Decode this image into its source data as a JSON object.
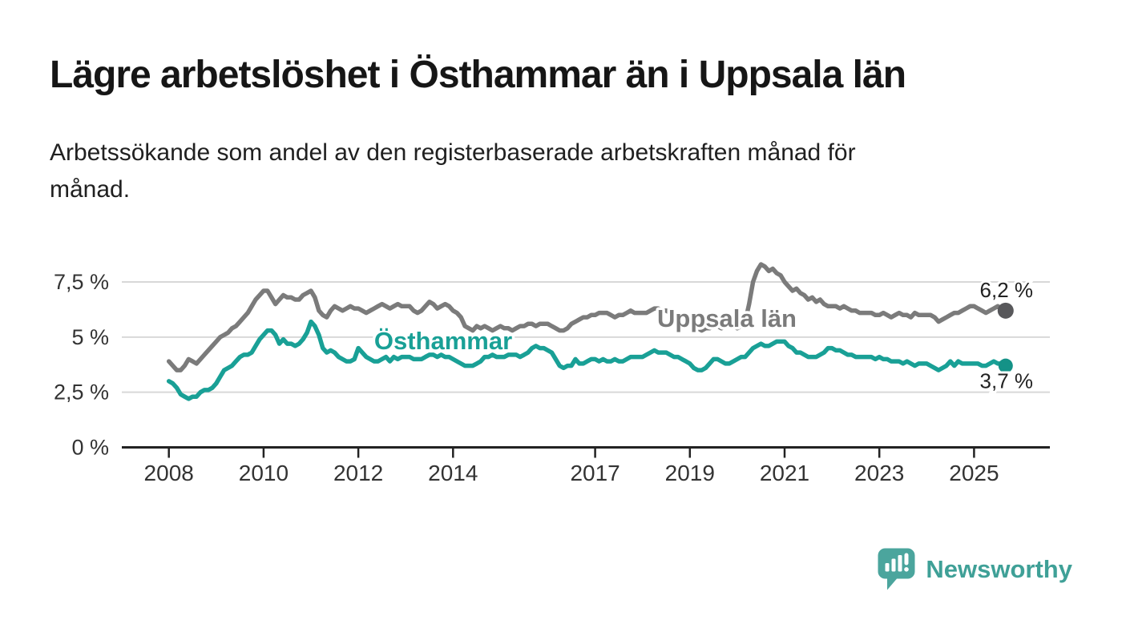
{
  "header": {
    "title": "Lägre arbetslöshet i Östhammar än i Uppsala län",
    "subtitle": "Arbetssökande som andel av den registerbaserade arbetskraften månad för månad.",
    "subtitle_lines": [
      "Arbetssökande som andel av den registerbaserade arbetskraften månad för",
      "månad."
    ]
  },
  "footer": {
    "brand": "Newsworthy",
    "brand_icon": "speech-bubble-bar-chart"
  },
  "colors": {
    "uppsala_line": "#7B7B7B",
    "uppsala_dot": "#58585B",
    "osthammar_line": "#19A096",
    "osthammar_dot": "#149287",
    "grid": "#D8D8D8",
    "axis": "#222222",
    "tick_label": "#333333",
    "value_label": "#222222",
    "brand_icon": "#4BA59D",
    "brand_text": "#3FA097",
    "background": "#FFFFFF"
  },
  "chart_data": {
    "type": "line",
    "title": "Lägre arbetslöshet i Östhammar än i Uppsala län",
    "subtitle": "Arbetssökande som andel av den registerbaserade arbetskraften månad för månad.",
    "xlabel": "",
    "ylabel": "",
    "unit": "%",
    "grid": "horizontal",
    "legend_position": "inline-labels",
    "x_unit": "month",
    "x_start": "2008-01",
    "x_end": "2025-09",
    "x_tick_years": [
      2008,
      2010,
      2012,
      2014,
      2017,
      2019,
      2021,
      2023,
      2025
    ],
    "y_ticks": [
      {
        "value": 0,
        "label": "0 %"
      },
      {
        "value": 2.5,
        "label": "2,5 %"
      },
      {
        "value": 5,
        "label": "5 %"
      },
      {
        "value": 7.5,
        "label": "7,5 %"
      }
    ],
    "ylim": [
      0,
      8.6
    ],
    "series": [
      {
        "name": "Uppsala län",
        "color": "#7B7B7B",
        "dot_color": "#58585B",
        "end_value": 6.2,
        "end_label": "6,2 %",
        "values": [
          3.9,
          3.7,
          3.5,
          3.5,
          3.7,
          4.0,
          3.9,
          3.8,
          4.0,
          4.2,
          4.4,
          4.6,
          4.8,
          5.0,
          5.1,
          5.2,
          5.4,
          5.5,
          5.7,
          5.9,
          6.1,
          6.4,
          6.7,
          6.9,
          7.1,
          7.1,
          6.8,
          6.5,
          6.7,
          6.9,
          6.8,
          6.8,
          6.7,
          6.7,
          6.9,
          7.0,
          7.1,
          6.8,
          6.2,
          6.0,
          5.9,
          6.2,
          6.4,
          6.3,
          6.2,
          6.3,
          6.4,
          6.3,
          6.3,
          6.2,
          6.1,
          6.2,
          6.3,
          6.4,
          6.5,
          6.4,
          6.3,
          6.4,
          6.5,
          6.4,
          6.4,
          6.4,
          6.2,
          6.1,
          6.2,
          6.4,
          6.6,
          6.5,
          6.3,
          6.4,
          6.5,
          6.4,
          6.2,
          6.1,
          5.9,
          5.5,
          5.4,
          5.3,
          5.5,
          5.4,
          5.5,
          5.4,
          5.3,
          5.4,
          5.5,
          5.4,
          5.4,
          5.3,
          5.4,
          5.5,
          5.5,
          5.6,
          5.6,
          5.5,
          5.6,
          5.6,
          5.6,
          5.5,
          5.4,
          5.3,
          5.3,
          5.4,
          5.6,
          5.7,
          5.8,
          5.9,
          5.9,
          6.0,
          6.0,
          6.1,
          6.1,
          6.1,
          6.0,
          5.9,
          6.0,
          6.0,
          6.1,
          6.2,
          6.1,
          6.1,
          6.1,
          6.1,
          6.2,
          6.3,
          6.3,
          6.2,
          6.2,
          6.1,
          6.1,
          6.0,
          5.9,
          5.8,
          5.7,
          5.5,
          5.4,
          5.3,
          5.4,
          5.4,
          5.5,
          5.5,
          5.4,
          5.5,
          5.6,
          5.5,
          5.4,
          5.5,
          5.7,
          6.5,
          7.5,
          8.0,
          8.3,
          8.2,
          8.0,
          8.1,
          7.9,
          7.8,
          7.5,
          7.3,
          7.1,
          7.2,
          7.0,
          6.9,
          6.7,
          6.8,
          6.6,
          6.7,
          6.5,
          6.4,
          6.4,
          6.4,
          6.3,
          6.4,
          6.3,
          6.2,
          6.2,
          6.1,
          6.1,
          6.1,
          6.1,
          6.0,
          6.0,
          6.1,
          6.0,
          5.9,
          6.0,
          6.1,
          6.0,
          6.0,
          5.9,
          6.1,
          6.0,
          6.0,
          6.0,
          6.0,
          5.9,
          5.7,
          5.8,
          5.9,
          6.0,
          6.1,
          6.1,
          6.2,
          6.3,
          6.4,
          6.4,
          6.3,
          6.2,
          6.1,
          6.2,
          6.3,
          6.4,
          6.3,
          6.2
        ]
      },
      {
        "name": "Östhammar",
        "color": "#19A096",
        "dot_color": "#149287",
        "end_value": 3.7,
        "end_label": "3,7 %",
        "values": [
          3.0,
          2.9,
          2.7,
          2.4,
          2.3,
          2.2,
          2.3,
          2.3,
          2.5,
          2.6,
          2.6,
          2.7,
          2.9,
          3.2,
          3.5,
          3.6,
          3.7,
          3.9,
          4.1,
          4.2,
          4.2,
          4.3,
          4.6,
          4.9,
          5.1,
          5.3,
          5.3,
          5.1,
          4.7,
          4.9,
          4.7,
          4.7,
          4.6,
          4.7,
          4.9,
          5.2,
          5.7,
          5.5,
          5.1,
          4.5,
          4.3,
          4.4,
          4.3,
          4.1,
          4.0,
          3.9,
          3.9,
          4.0,
          4.5,
          4.3,
          4.1,
          4.0,
          3.9,
          3.9,
          4.0,
          4.1,
          3.9,
          4.1,
          4.0,
          4.1,
          4.1,
          4.1,
          4.0,
          4.0,
          4.0,
          4.1,
          4.2,
          4.2,
          4.1,
          4.2,
          4.1,
          4.1,
          4.0,
          3.9,
          3.8,
          3.7,
          3.7,
          3.7,
          3.8,
          3.9,
          4.1,
          4.1,
          4.2,
          4.1,
          4.1,
          4.1,
          4.2,
          4.2,
          4.2,
          4.1,
          4.2,
          4.3,
          4.5,
          4.6,
          4.5,
          4.5,
          4.4,
          4.3,
          4.0,
          3.7,
          3.6,
          3.7,
          3.7,
          4.0,
          3.8,
          3.8,
          3.9,
          4.0,
          4.0,
          3.9,
          4.0,
          3.9,
          3.9,
          4.0,
          3.9,
          3.9,
          4.0,
          4.1,
          4.1,
          4.1,
          4.1,
          4.2,
          4.3,
          4.4,
          4.3,
          4.3,
          4.3,
          4.2,
          4.1,
          4.1,
          4.0,
          3.9,
          3.8,
          3.6,
          3.5,
          3.5,
          3.6,
          3.8,
          4.0,
          4.0,
          3.9,
          3.8,
          3.8,
          3.9,
          4.0,
          4.1,
          4.1,
          4.3,
          4.5,
          4.6,
          4.7,
          4.6,
          4.6,
          4.7,
          4.8,
          4.8,
          4.8,
          4.6,
          4.5,
          4.3,
          4.3,
          4.2,
          4.1,
          4.1,
          4.1,
          4.2,
          4.3,
          4.5,
          4.5,
          4.4,
          4.4,
          4.3,
          4.2,
          4.2,
          4.1,
          4.1,
          4.1,
          4.1,
          4.1,
          4.0,
          4.1,
          4.0,
          4.0,
          3.9,
          3.9,
          3.9,
          3.8,
          3.9,
          3.8,
          3.7,
          3.8,
          3.8,
          3.8,
          3.7,
          3.6,
          3.5,
          3.6,
          3.7,
          3.9,
          3.7,
          3.9,
          3.8,
          3.8,
          3.8,
          3.8,
          3.8,
          3.7,
          3.7,
          3.8,
          3.9,
          3.8,
          3.8,
          3.7
        ]
      }
    ]
  }
}
